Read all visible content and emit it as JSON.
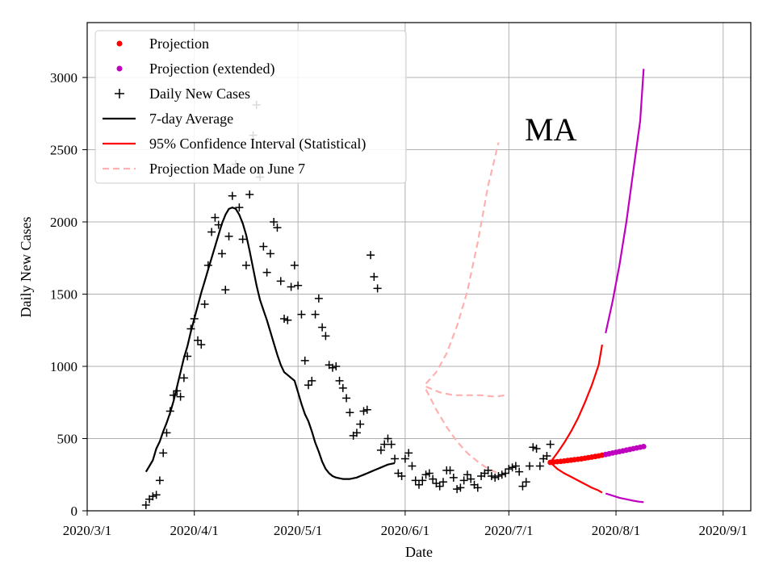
{
  "chart_data": {
    "type": "line",
    "annotation": "MA",
    "xlabel": "Date",
    "ylabel": "Daily New Cases",
    "x_ticks": [
      {
        "day": 0,
        "label": "2020/3/1"
      },
      {
        "day": 31,
        "label": "2020/4/1"
      },
      {
        "day": 61,
        "label": "2020/5/1"
      },
      {
        "day": 92,
        "label": "2020/6/1"
      },
      {
        "day": 122,
        "label": "2020/7/1"
      },
      {
        "day": 153,
        "label": "2020/8/1"
      },
      {
        "day": 184,
        "label": "2020/9/1"
      }
    ],
    "y_ticks": [
      0,
      500,
      1000,
      1500,
      2000,
      2500,
      3000
    ],
    "xlim": [
      0,
      192
    ],
    "ylim": [
      0,
      3380
    ],
    "grid": true,
    "legend_position": "top-left",
    "legend": [
      {
        "label": "Projection",
        "kind": "dot",
        "color": "#ff0000"
      },
      {
        "label": "Projection (extended)",
        "kind": "dot",
        "color": "#bf00bf"
      },
      {
        "label": "Daily New Cases",
        "kind": "plus",
        "color": "#000000"
      },
      {
        "label": "7-day Average",
        "kind": "line",
        "color": "#000000"
      },
      {
        "label": "95% Confidence Interval (Statistical)",
        "kind": "line",
        "color": "#ff0000"
      },
      {
        "label": "Projection Made on June 7",
        "kind": "dash",
        "color": "#ffb0b0"
      }
    ],
    "series": [
      {
        "name": "Daily New Cases",
        "style": "plus",
        "color": "#000000",
        "points": [
          [
            17,
            40
          ],
          [
            18,
            80
          ],
          [
            19,
            100
          ],
          [
            20,
            110
          ],
          [
            21,
            210
          ],
          [
            22,
            400
          ],
          [
            23,
            540
          ],
          [
            24,
            690
          ],
          [
            25,
            800
          ],
          [
            26,
            830
          ],
          [
            27,
            790
          ],
          [
            28,
            920
          ],
          [
            29,
            1070
          ],
          [
            30,
            1260
          ],
          [
            31,
            1330
          ],
          [
            32,
            1180
          ],
          [
            33,
            1150
          ],
          [
            34,
            1430
          ],
          [
            35,
            1700
          ],
          [
            36,
            1930
          ],
          [
            37,
            2030
          ],
          [
            38,
            1980
          ],
          [
            39,
            1780
          ],
          [
            40,
            1530
          ],
          [
            41,
            1900
          ],
          [
            42,
            2180
          ],
          [
            43,
            2400
          ],
          [
            44,
            2100
          ],
          [
            45,
            1880
          ],
          [
            46,
            1700
          ],
          [
            47,
            2190
          ],
          [
            48,
            2600
          ],
          [
            49,
            2810
          ],
          [
            50,
            2310
          ],
          [
            51,
            1830
          ],
          [
            52,
            1650
          ],
          [
            53,
            1780
          ],
          [
            54,
            2000
          ],
          [
            55,
            1960
          ],
          [
            56,
            1590
          ],
          [
            57,
            1330
          ],
          [
            58,
            1320
          ],
          [
            59,
            1550
          ],
          [
            60,
            1700
          ],
          [
            61,
            1560
          ],
          [
            62,
            1360
          ],
          [
            63,
            1040
          ],
          [
            64,
            870
          ],
          [
            65,
            900
          ],
          [
            66,
            1360
          ],
          [
            67,
            1470
          ],
          [
            68,
            1270
          ],
          [
            69,
            1210
          ],
          [
            70,
            1010
          ],
          [
            71,
            990
          ],
          [
            72,
            1000
          ],
          [
            73,
            900
          ],
          [
            74,
            850
          ],
          [
            75,
            780
          ],
          [
            76,
            680
          ],
          [
            77,
            520
          ],
          [
            78,
            540
          ],
          [
            79,
            600
          ],
          [
            80,
            690
          ],
          [
            81,
            700
          ],
          [
            82,
            1770
          ],
          [
            83,
            1620
          ],
          [
            84,
            1540
          ],
          [
            85,
            420
          ],
          [
            86,
            460
          ],
          [
            87,
            500
          ],
          [
            88,
            460
          ],
          [
            89,
            360
          ],
          [
            90,
            260
          ],
          [
            91,
            240
          ],
          [
            92,
            360
          ],
          [
            93,
            400
          ],
          [
            94,
            310
          ],
          [
            95,
            210
          ],
          [
            96,
            180
          ],
          [
            97,
            210
          ],
          [
            98,
            250
          ],
          [
            99,
            260
          ],
          [
            100,
            220
          ],
          [
            101,
            190
          ],
          [
            102,
            170
          ],
          [
            103,
            200
          ],
          [
            104,
            280
          ],
          [
            105,
            280
          ],
          [
            106,
            230
          ],
          [
            107,
            150
          ],
          [
            108,
            160
          ],
          [
            109,
            210
          ],
          [
            110,
            250
          ],
          [
            111,
            220
          ],
          [
            112,
            180
          ],
          [
            113,
            160
          ],
          [
            114,
            240
          ],
          [
            115,
            260
          ],
          [
            116,
            280
          ],
          [
            117,
            240
          ],
          [
            118,
            230
          ],
          [
            119,
            240
          ],
          [
            120,
            250
          ],
          [
            121,
            260
          ],
          [
            122,
            290
          ],
          [
            123,
            300
          ],
          [
            124,
            310
          ],
          [
            125,
            270
          ],
          [
            126,
            170
          ],
          [
            127,
            200
          ],
          [
            128,
            310
          ],
          [
            129,
            440
          ],
          [
            130,
            430
          ],
          [
            131,
            310
          ],
          [
            132,
            360
          ],
          [
            133,
            380
          ],
          [
            134,
            460
          ]
        ]
      },
      {
        "name": "7-day Average",
        "style": "line",
        "color": "#000000",
        "points": [
          [
            17,
            270
          ],
          [
            18,
            310
          ],
          [
            19,
            350
          ],
          [
            20,
            430
          ],
          [
            21,
            480
          ],
          [
            22,
            550
          ],
          [
            23,
            610
          ],
          [
            24,
            680
          ],
          [
            25,
            760
          ],
          [
            26,
            860
          ],
          [
            27,
            960
          ],
          [
            28,
            1060
          ],
          [
            29,
            1140
          ],
          [
            30,
            1240
          ],
          [
            31,
            1330
          ],
          [
            32,
            1420
          ],
          [
            33,
            1510
          ],
          [
            34,
            1590
          ],
          [
            35,
            1670
          ],
          [
            36,
            1750
          ],
          [
            37,
            1830
          ],
          [
            38,
            1910
          ],
          [
            39,
            1990
          ],
          [
            40,
            2050
          ],
          [
            41,
            2090
          ],
          [
            42,
            2100
          ],
          [
            43,
            2090
          ],
          [
            44,
            2050
          ],
          [
            45,
            1990
          ],
          [
            46,
            1910
          ],
          [
            47,
            1800
          ],
          [
            48,
            1680
          ],
          [
            49,
            1560
          ],
          [
            50,
            1460
          ],
          [
            51,
            1390
          ],
          [
            52,
            1320
          ],
          [
            53,
            1240
          ],
          [
            54,
            1160
          ],
          [
            55,
            1080
          ],
          [
            56,
            1010
          ],
          [
            57,
            960
          ],
          [
            58,
            940
          ],
          [
            59,
            920
          ],
          [
            60,
            900
          ],
          [
            61,
            820
          ],
          [
            62,
            740
          ],
          [
            63,
            670
          ],
          [
            64,
            620
          ],
          [
            65,
            550
          ],
          [
            66,
            470
          ],
          [
            67,
            410
          ],
          [
            68,
            340
          ],
          [
            69,
            290
          ],
          [
            70,
            260
          ],
          [
            71,
            240
          ],
          [
            72,
            230
          ],
          [
            73,
            225
          ],
          [
            74,
            220
          ],
          [
            75,
            220
          ],
          [
            76,
            220
          ],
          [
            77,
            225
          ],
          [
            78,
            230
          ],
          [
            79,
            240
          ],
          [
            80,
            250
          ],
          [
            81,
            260
          ],
          [
            82,
            270
          ],
          [
            83,
            280
          ],
          [
            84,
            290
          ],
          [
            85,
            300
          ],
          [
            86,
            310
          ],
          [
            87,
            320
          ],
          [
            88,
            325
          ],
          [
            89,
            330
          ]
        ]
      },
      {
        "name": "Projection",
        "style": "dots",
        "color": "#ff0000",
        "points": [
          [
            134,
            335
          ],
          [
            135,
            338
          ],
          [
            136,
            340
          ],
          [
            137,
            342
          ],
          [
            138,
            345
          ],
          [
            139,
            348
          ],
          [
            140,
            351
          ],
          [
            141,
            354
          ],
          [
            142,
            357
          ],
          [
            143,
            360
          ],
          [
            144,
            364
          ],
          [
            145,
            368
          ],
          [
            146,
            372
          ],
          [
            147,
            376
          ],
          [
            148,
            380
          ],
          [
            149,
            385
          ]
        ]
      },
      {
        "name": "Projection (extended)",
        "style": "dots",
        "color": "#bf00bf",
        "points": [
          [
            150,
            390
          ],
          [
            151,
            395
          ],
          [
            152,
            400
          ],
          [
            153,
            405
          ],
          [
            154,
            410
          ],
          [
            155,
            415
          ],
          [
            156,
            420
          ],
          [
            157,
            425
          ],
          [
            158,
            430
          ],
          [
            159,
            435
          ],
          [
            160,
            440
          ],
          [
            161,
            445
          ]
        ]
      },
      {
        "name": "95% CI upper",
        "style": "line",
        "color": "#ff0000",
        "points": [
          [
            134,
            335
          ],
          [
            136,
            400
          ],
          [
            138,
            470
          ],
          [
            140,
            550
          ],
          [
            142,
            640
          ],
          [
            144,
            750
          ],
          [
            146,
            870
          ],
          [
            148,
            1010
          ],
          [
            149,
            1150
          ]
        ]
      },
      {
        "name": "95% CI lower",
        "style": "line",
        "color": "#ff0000",
        "points": [
          [
            134,
            335
          ],
          [
            136,
            290
          ],
          [
            138,
            260
          ],
          [
            140,
            235
          ],
          [
            142,
            210
          ],
          [
            144,
            185
          ],
          [
            146,
            160
          ],
          [
            148,
            140
          ],
          [
            149,
            125
          ]
        ]
      },
      {
        "name": "95% CI upper (extended)",
        "style": "line",
        "color": "#bf00bf",
        "points": [
          [
            150,
            1230
          ],
          [
            152,
            1450
          ],
          [
            154,
            1700
          ],
          [
            156,
            2000
          ],
          [
            158,
            2350
          ],
          [
            160,
            2700
          ],
          [
            161,
            3060
          ]
        ]
      },
      {
        "name": "95% CI lower (extended)",
        "style": "line",
        "color": "#bf00bf",
        "points": [
          [
            150,
            120
          ],
          [
            152,
            105
          ],
          [
            154,
            90
          ],
          [
            156,
            80
          ],
          [
            158,
            70
          ],
          [
            160,
            62
          ],
          [
            161,
            60
          ]
        ]
      },
      {
        "name": "Projection Made on June 7 (upper)",
        "style": "dash",
        "color": "#ffb0b0",
        "points": [
          [
            98,
            880
          ],
          [
            101,
            960
          ],
          [
            104,
            1090
          ],
          [
            107,
            1280
          ],
          [
            110,
            1520
          ],
          [
            113,
            1860
          ],
          [
            116,
            2250
          ],
          [
            119,
            2550
          ]
        ]
      },
      {
        "name": "Projection Made on June 7 (mid)",
        "style": "dash",
        "color": "#ffb0b0",
        "points": [
          [
            98,
            860
          ],
          [
            102,
            820
          ],
          [
            106,
            800
          ],
          [
            110,
            800
          ],
          [
            114,
            800
          ],
          [
            118,
            790
          ],
          [
            121,
            800
          ]
        ]
      },
      {
        "name": "Projection Made on June 7 (lower)",
        "style": "dash",
        "color": "#ffb0b0",
        "points": [
          [
            98,
            840
          ],
          [
            101,
            700
          ],
          [
            104,
            580
          ],
          [
            107,
            480
          ],
          [
            110,
            400
          ],
          [
            113,
            340
          ],
          [
            116,
            290
          ],
          [
            119,
            260
          ]
        ]
      }
    ]
  }
}
